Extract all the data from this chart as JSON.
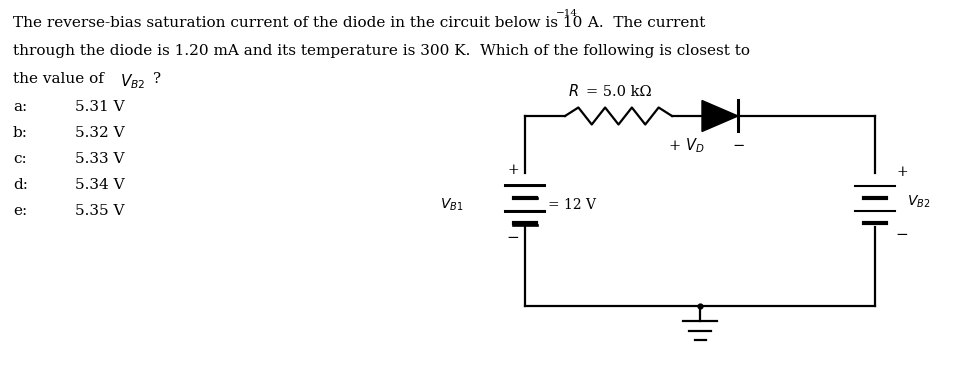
{
  "bg_color": "#ffffff",
  "text_color": "#000000",
  "options": [
    [
      "a:",
      "5.31 V"
    ],
    [
      "b:",
      "5.32 V"
    ],
    [
      "c:",
      "5.33 V"
    ],
    [
      "d:",
      "5.34 V"
    ],
    [
      "e:",
      "5.35 V"
    ]
  ],
  "lw": 1.6,
  "circuit_color": "#000000",
  "fig_w": 9.72,
  "fig_h": 3.88,
  "dpi": 100
}
